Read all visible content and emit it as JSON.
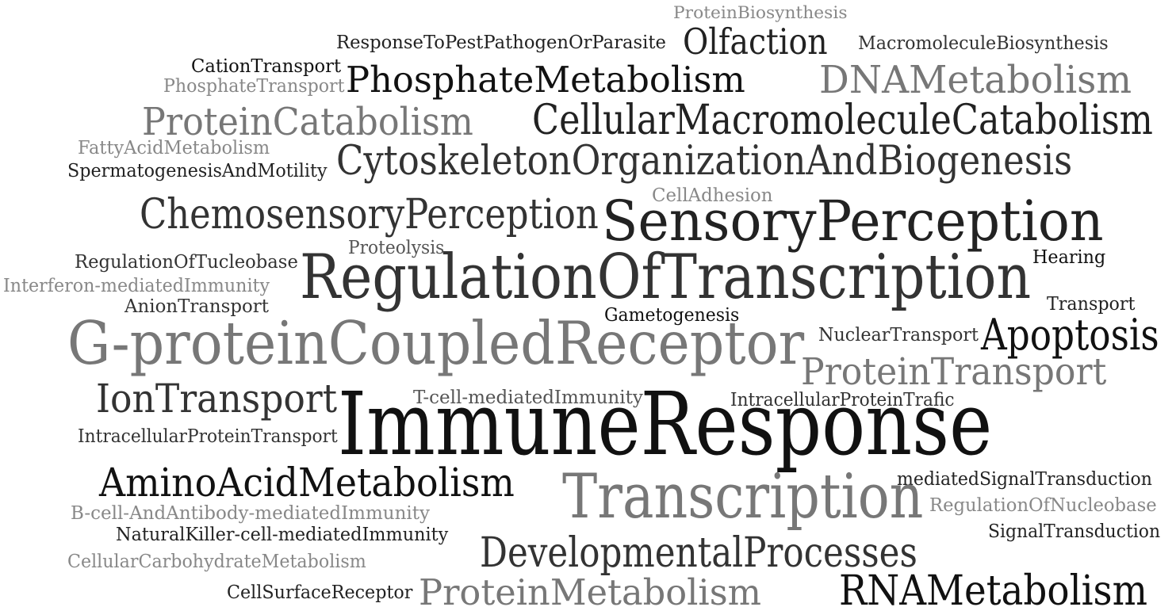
{
  "words": [
    {
      "text": "ProteinBiosynthesis",
      "color": "#888888"
    },
    {
      "text": "ResponseToPestPathogenOrParasite",
      "color": "#222222"
    },
    {
      "text": "Olfaction",
      "color": "#222222"
    },
    {
      "text": "MacromoleculeBiosynthesis",
      "color": "#333333"
    },
    {
      "text": "CationTransport",
      "color": "#111111"
    },
    {
      "text": "PhosphateTransport",
      "color": "#888888"
    },
    {
      "text": "PhosphateMetabolism",
      "color": "#111111"
    },
    {
      "text": "DNAMetabolism",
      "color": "#777777"
    },
    {
      "text": "ProteinCatabolism",
      "color": "#777777"
    },
    {
      "text": "CellularMacromoleculeCatabolism",
      "color": "#222222"
    },
    {
      "text": "FattyAcidMetabolism",
      "color": "#888888"
    },
    {
      "text": "SpermatogenesisAndMotility",
      "color": "#222222"
    },
    {
      "text": "CytoskeletonOrganizationAndBiogenesis",
      "color": "#333333"
    },
    {
      "text": "CellAdhesion",
      "color": "#888888"
    },
    {
      "text": "ChemosensoryPerception",
      "color": "#333333"
    },
    {
      "text": "SensoryPerception",
      "color": "#222222"
    },
    {
      "text": "Proteolysis",
      "color": "#555555"
    },
    {
      "text": "RegulationOfTucleobase",
      "color": "#333333"
    },
    {
      "text": "Hearing",
      "color": "#111111"
    },
    {
      "text": "RegulationOfTranscription",
      "color": "#333333"
    },
    {
      "text": "Interferon-mediatedImmunity",
      "color": "#888888"
    },
    {
      "text": "AnionTransport",
      "color": "#333333"
    },
    {
      "text": "Transport",
      "color": "#222222"
    },
    {
      "text": "Gametogenesis",
      "color": "#111111"
    },
    {
      "text": "G-proteinCoupledReceptor",
      "color": "#777777"
    },
    {
      "text": "NuclearTransport",
      "color": "#333333"
    },
    {
      "text": "Apoptosis",
      "color": "#111111"
    },
    {
      "text": "ProteinTransport",
      "color": "#777777"
    },
    {
      "text": "IonTransport",
      "color": "#333333"
    },
    {
      "text": "T-cell-mediatedImmunity",
      "color": "#555555"
    },
    {
      "text": "IntracellularProteinTrafic",
      "color": "#333333"
    },
    {
      "text": "ImmuneResponse",
      "color": "#111111"
    },
    {
      "text": "IntracellularProteinTransport",
      "color": "#333333"
    },
    {
      "text": "AminoAcidMetabolism",
      "color": "#111111"
    },
    {
      "text": "mediatedSignalTransduction",
      "color": "#222222"
    },
    {
      "text": "Transcription",
      "color": "#777777"
    },
    {
      "text": "B-cell-AndAntibody-mediatedImmunity",
      "color": "#888888"
    },
    {
      "text": "RegulationOfNucleobase",
      "color": "#888888"
    },
    {
      "text": "NaturalKiller-cell-mediatedImmunity",
      "color": "#222222"
    },
    {
      "text": "SignalTransduction",
      "color": "#222222"
    },
    {
      "text": "DevelopmentalProcesses",
      "color": "#333333"
    },
    {
      "text": "CellularCarbohydrateMetabolism",
      "color": "#888888"
    },
    {
      "text": "CellSurfaceReceptor",
      "color": "#222222"
    },
    {
      "text": "ProteinMetabolism",
      "color": "#777777"
    },
    {
      "text": "RNAMetabolism",
      "color": "#111111"
    }
  ]
}
